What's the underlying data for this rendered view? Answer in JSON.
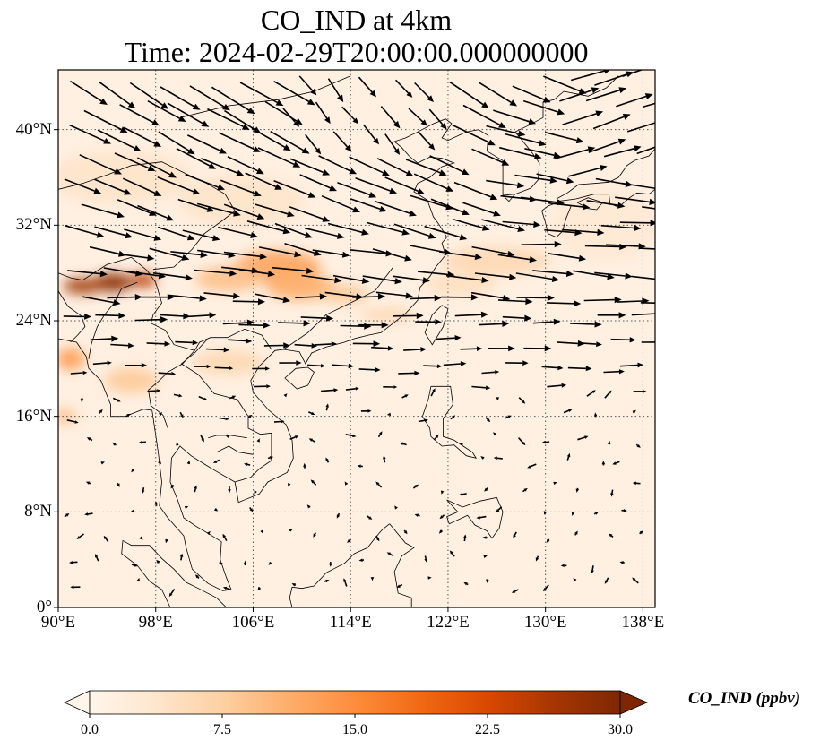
{
  "figure": {
    "title_line1": "CO_IND at 4km",
    "title_line2": "Time: 2024-02-29T20:00:00.000000000"
  },
  "map": {
    "lon_range": [
      90,
      139
    ],
    "lat_range": [
      0,
      45
    ],
    "x_ticks": [
      "90°E",
      "98°E",
      "106°E",
      "114°E",
      "122°E",
      "130°E",
      "138°E"
    ],
    "x_tick_values": [
      90,
      98,
      106,
      114,
      122,
      130,
      138
    ],
    "y_ticks": [
      "0°",
      "8°N",
      "16°N",
      "24°N",
      "32°N",
      "40°N"
    ],
    "y_tick_values": [
      0,
      8,
      16,
      24,
      32,
      40
    ],
    "gridlines": "dotted",
    "field_hotspots": [
      {
        "lon": 94.5,
        "lat": 27.2,
        "value": 29
      },
      {
        "lon": 92.0,
        "lat": 26.9,
        "value": 27
      },
      {
        "lon": 97.0,
        "lat": 27.4,
        "value": 25
      },
      {
        "lon": 108.0,
        "lat": 28.5,
        "value": 12
      },
      {
        "lon": 110.0,
        "lat": 26.8,
        "value": 11
      },
      {
        "lon": 104.0,
        "lat": 27.5,
        "value": 9
      },
      {
        "lon": 113.5,
        "lat": 26.2,
        "value": 8
      },
      {
        "lon": 91.0,
        "lat": 20.8,
        "value": 13
      },
      {
        "lon": 96.0,
        "lat": 19.0,
        "value": 8
      },
      {
        "lon": 104.0,
        "lat": 20.5,
        "value": 6
      },
      {
        "lon": 90.5,
        "lat": 16.0,
        "value": 9
      },
      {
        "lon": 117.0,
        "lat": 24.5,
        "value": 6
      },
      {
        "lon": 126.0,
        "lat": 29.0,
        "value": 6
      },
      {
        "lon": 123.0,
        "lat": 27.0,
        "value": 5
      },
      {
        "lon": 95.0,
        "lat": 36.0,
        "value": 4
      },
      {
        "lon": 105.0,
        "lat": 34.0,
        "value": 4
      },
      {
        "lon": 135.0,
        "lat": 32.0,
        "value": 3
      }
    ],
    "wind_note": "Wind vectors: strong westerly/north-westerly flow north of ~18°N, weak variable flow in the tropics"
  },
  "colorbar": {
    "label": "CO_IND (ppbv)",
    "min": 0.0,
    "max": 30.0,
    "ticks": [
      "0.0",
      "7.5",
      "15.0",
      "22.5",
      "30.0"
    ],
    "tick_values": [
      0,
      7.5,
      15,
      22.5,
      30
    ],
    "extend": "both",
    "colormap": [
      "#fff5eb",
      "#fee6ce",
      "#fdd0a2",
      "#fdae6b",
      "#fd8d3c",
      "#f16913",
      "#d94801",
      "#a63603",
      "#7f2704"
    ]
  },
  "colors": {
    "land_outline": "#000000",
    "gridline": "#555555",
    "arrow": "#000000"
  }
}
